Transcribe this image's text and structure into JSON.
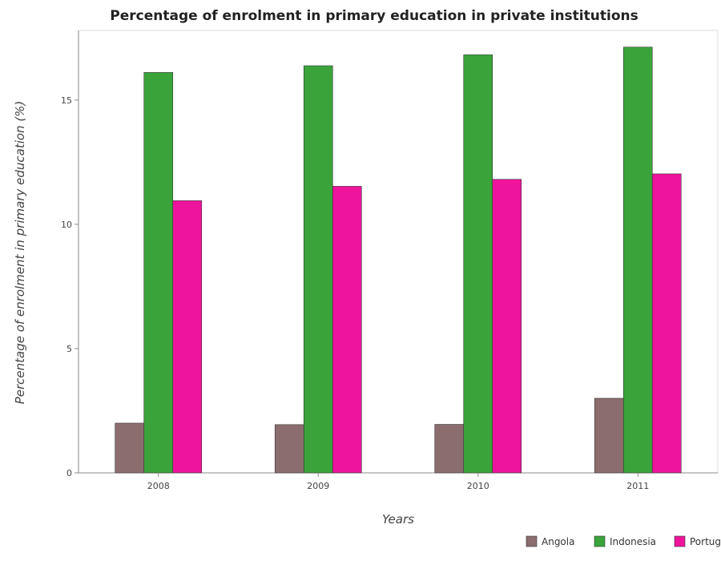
{
  "chart_data": {
    "type": "bar",
    "title": "Percentage of enrolment in primary education in private institutions",
    "xlabel": "Years",
    "ylabel": "Percentage of enrolment in primary education (%)",
    "categories": [
      "2008",
      "2009",
      "2010",
      "2011"
    ],
    "series": [
      {
        "name": "Angola",
        "color": "#8c6d6f",
        "values": [
          2.0,
          1.94,
          1.95,
          3.0
        ]
      },
      {
        "name": "Indonesia",
        "color": "#3aa43a",
        "values": [
          16.11,
          16.38,
          16.82,
          17.13
        ]
      },
      {
        "name": "Portugal",
        "color": "#ee149c",
        "values": [
          10.95,
          11.53,
          11.81,
          12.03
        ]
      }
    ],
    "ylim": [
      0,
      17.8
    ],
    "yticks": [
      0,
      5,
      10,
      15
    ],
    "grid": false,
    "legend_position": "bottom-right"
  }
}
